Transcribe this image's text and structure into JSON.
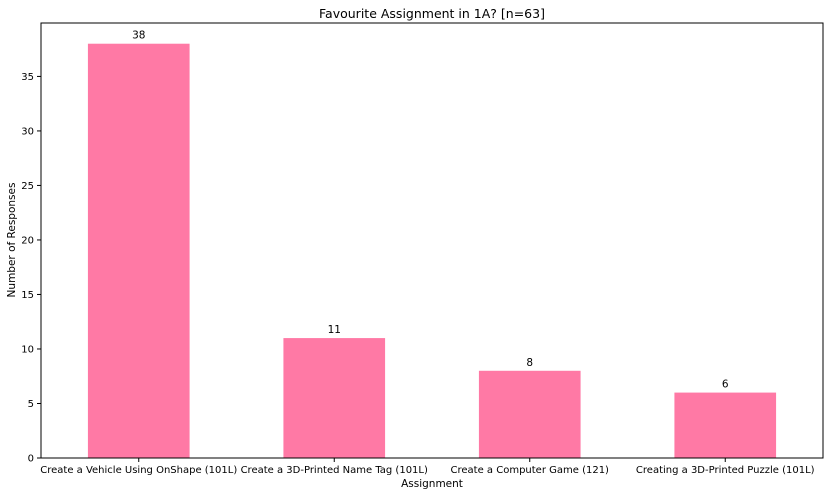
{
  "chart_data": {
    "type": "bar",
    "title": "Favourite Assignment in 1A? [n=63]",
    "xlabel": "Assignment",
    "ylabel": "Number of Responses",
    "categories": [
      "Create a Vehicle Using OnShape (101L)",
      "Create a 3D-Printed Name Tag (101L)",
      "Create a Computer Game (121)",
      "Creating a 3D-Printed Puzzle (101L)"
    ],
    "values": [
      38,
      11,
      8,
      6
    ],
    "data_labels": [
      "38",
      "11",
      "8",
      "6"
    ],
    "ylim": [
      0,
      39.9
    ],
    "yticks": [
      0,
      5,
      10,
      15,
      20,
      25,
      30,
      35
    ],
    "grid": false,
    "legend": "none",
    "bar_color": "#ff79a5"
  }
}
